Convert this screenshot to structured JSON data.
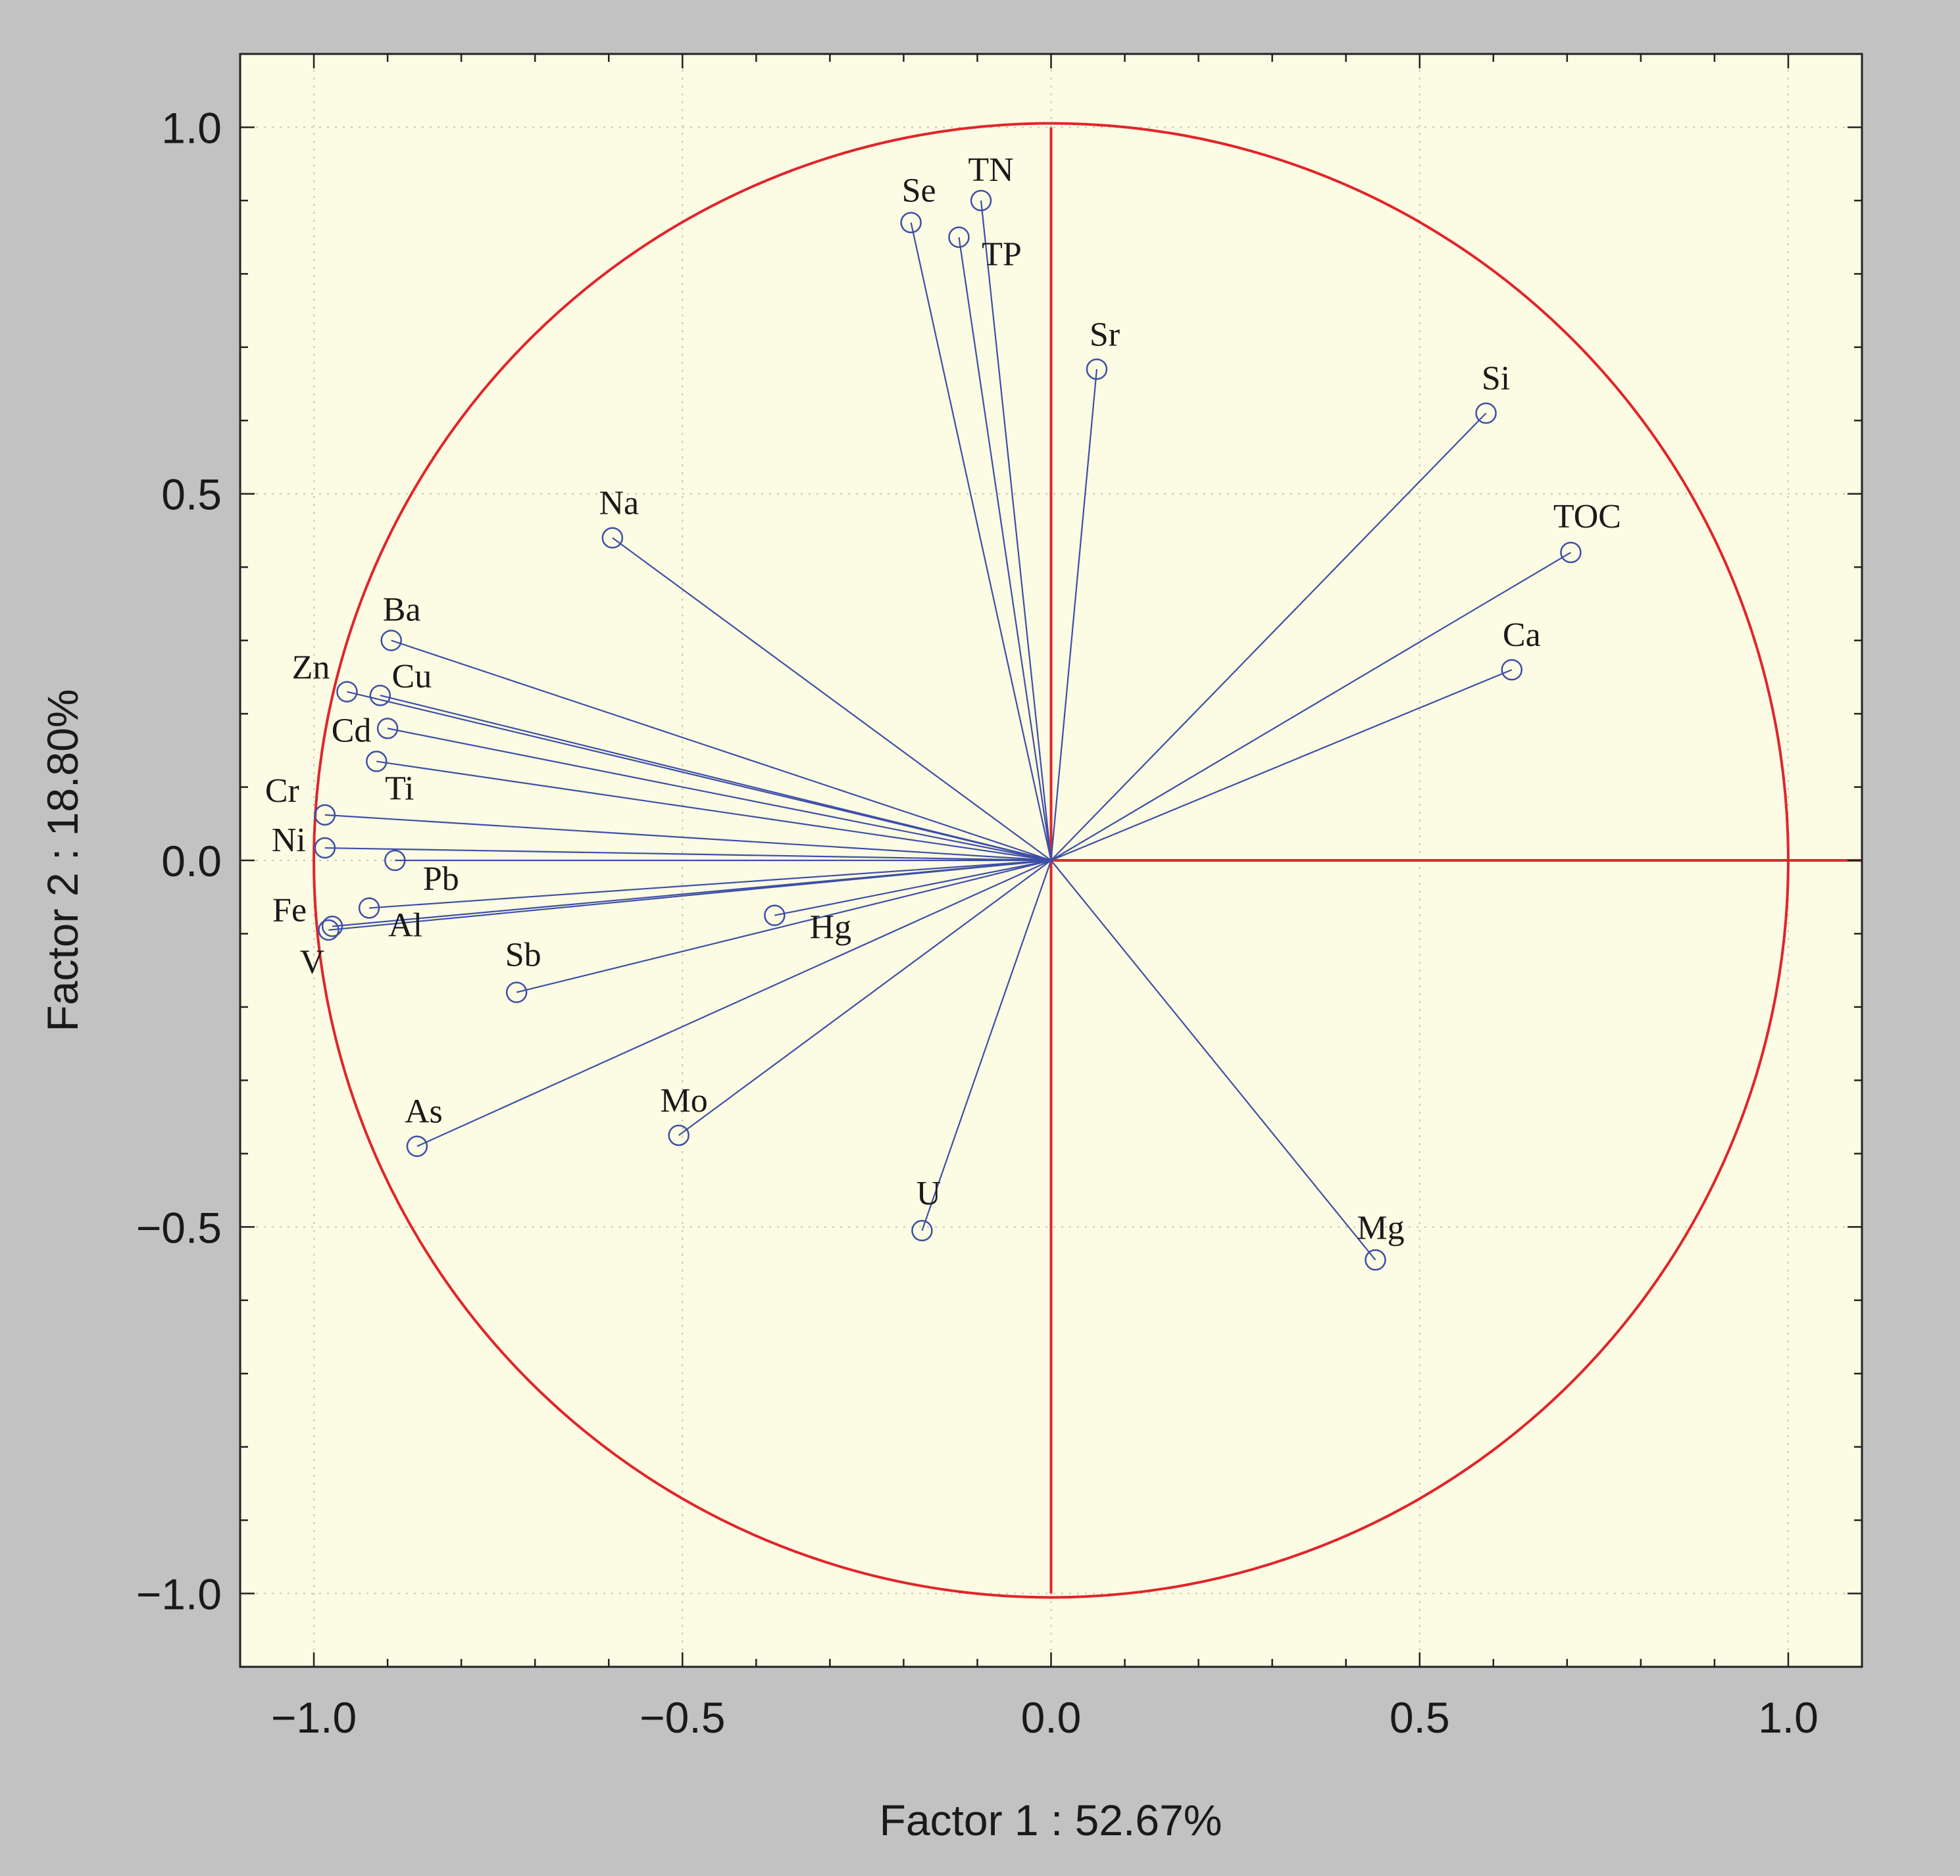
{
  "chart_data": {
    "type": "scatter",
    "subtype": "pca-loading-plot",
    "xlabel": "Factor 1 : 52.67%",
    "ylabel": "Factor 2 : 18.80%",
    "xlim": [
      -1.1,
      1.1
    ],
    "ylim": [
      -1.1,
      1.1
    ],
    "xticks": [
      -1.0,
      -0.5,
      0.0,
      0.5,
      1.0
    ],
    "yticks": [
      -1.0,
      -0.5,
      0.0,
      0.5,
      1.0
    ],
    "xtick_labels": [
      "−1.0",
      "−0.5",
      "0.0",
      "0.5",
      "1.0"
    ],
    "ytick_labels": [
      "−1.0",
      "−0.5",
      "0.0",
      "0.5",
      "1.0"
    ],
    "grid": true,
    "unit_circle": true,
    "colors": {
      "outer_background": "#c2c2c2",
      "plot_background": "#fcfbe3",
      "circle_and_axes": "#e0252b",
      "vectors": "#3d4fa6",
      "frame": "#222222",
      "grid": "#c8c8b0"
    },
    "points": [
      {
        "label": "TN",
        "x": -0.095,
        "y": 0.9
      },
      {
        "label": "Se",
        "x": -0.19,
        "y": 0.87
      },
      {
        "label": "TP",
        "x": -0.125,
        "y": 0.85
      },
      {
        "label": "Sr",
        "x": 0.062,
        "y": 0.67
      },
      {
        "label": "Si",
        "x": 0.59,
        "y": 0.61
      },
      {
        "label": "TOC",
        "x": 0.705,
        "y": 0.42
      },
      {
        "label": "Ca",
        "x": 0.625,
        "y": 0.26
      },
      {
        "label": "Na",
        "x": -0.595,
        "y": 0.44
      },
      {
        "label": "Ba",
        "x": -0.895,
        "y": 0.3
      },
      {
        "label": "Zn",
        "x": -0.955,
        "y": 0.23
      },
      {
        "label": "Cu",
        "x": -0.91,
        "y": 0.225
      },
      {
        "label": "Cd",
        "x": -0.9,
        "y": 0.18
      },
      {
        "label": "Ti",
        "x": -0.915,
        "y": 0.135
      },
      {
        "label": "Cr",
        "x": -0.985,
        "y": 0.062
      },
      {
        "label": "Ni",
        "x": -0.985,
        "y": 0.017
      },
      {
        "label": "Pb",
        "x": -0.89,
        "y": 0.0
      },
      {
        "label": "Fe",
        "x": -0.975,
        "y": -0.09
      },
      {
        "label": "V",
        "x": -0.98,
        "y": -0.095
      },
      {
        "label": "Al",
        "x": -0.925,
        "y": -0.065
      },
      {
        "label": "Hg",
        "x": -0.375,
        "y": -0.075
      },
      {
        "label": "Sb",
        "x": -0.725,
        "y": -0.18
      },
      {
        "label": "As",
        "x": -0.86,
        "y": -0.39
      },
      {
        "label": "Mo",
        "x": -0.505,
        "y": -0.375
      },
      {
        "label": "U",
        "x": -0.175,
        "y": -0.505
      },
      {
        "label": "Mg",
        "x": 0.44,
        "y": -0.545
      }
    ]
  }
}
